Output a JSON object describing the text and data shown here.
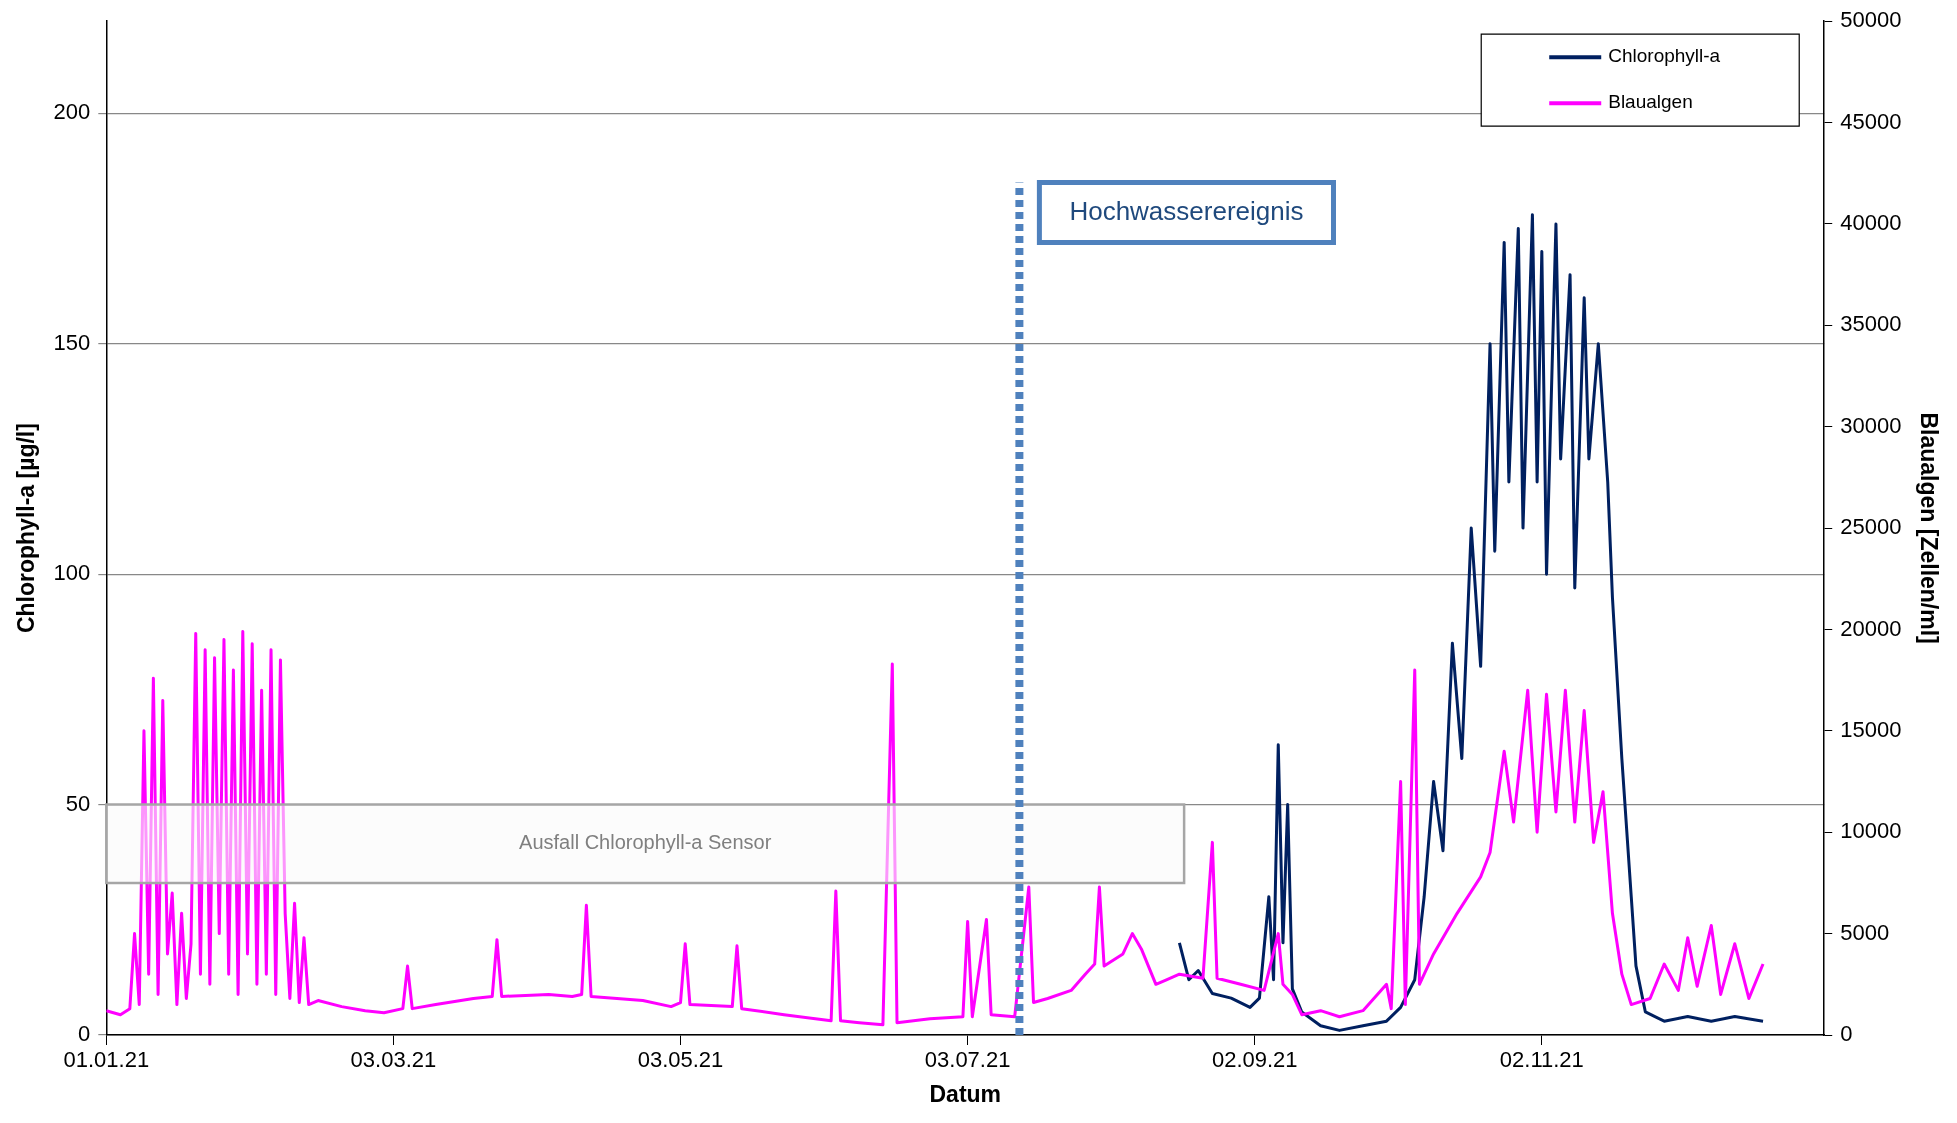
{
  "chart_data": {
    "type": "line",
    "xlabel": "Datum",
    "ylabel": "Chlorophyll-a [µg/l]",
    "y2label": "Blaualgen [Zellen/ml]",
    "xlim": [
      "2021-01-01",
      "2022-01-01"
    ],
    "xticks": [
      {
        "value": "2021-01-01",
        "label": "01.01.21"
      },
      {
        "value": "2021-03-03",
        "label": "03.03.21"
      },
      {
        "value": "2021-05-03",
        "label": "03.05.21"
      },
      {
        "value": "2021-07-03",
        "label": "03.07.21"
      },
      {
        "value": "2021-09-02",
        "label": "02.09.21"
      },
      {
        "value": "2021-11-02",
        "label": "02.11.21"
      }
    ],
    "ylim": [
      0,
      220
    ],
    "yticks": [
      0,
      50,
      100,
      150,
      200
    ],
    "y2lim": [
      0,
      50000
    ],
    "y2ticks": [
      0,
      5000,
      10000,
      15000,
      20000,
      25000,
      30000,
      35000,
      40000,
      45000,
      50000
    ],
    "grid": "y",
    "legend": "top right",
    "marker": "none",
    "line_style": "solid",
    "series": [
      {
        "name": "Chlorophyll-a",
        "color": "#002060",
        "x": [
          "2021-08-17",
          "2021-08-19",
          "2021-08-21",
          "2021-08-24",
          "2021-08-28",
          "2021-09-01",
          "2021-09-03",
          "2021-09-05",
          "2021-09-06",
          "2021-09-07",
          "2021-09-08",
          "2021-09-09",
          "2021-09-10",
          "2021-09-12",
          "2021-09-16",
          "2021-09-20",
          "2021-09-25",
          "2021-09-30",
          "2021-10-03",
          "2021-10-06",
          "2021-10-08",
          "2021-10-10",
          "2021-10-12",
          "2021-10-14",
          "2021-10-16",
          "2021-10-18",
          "2021-10-20",
          "2021-10-22",
          "2021-10-23",
          "2021-10-25",
          "2021-10-26",
          "2021-10-28",
          "2021-10-29",
          "2021-10-31",
          "2021-11-01",
          "2021-11-02",
          "2021-11-03",
          "2021-11-05",
          "2021-11-06",
          "2021-11-08",
          "2021-11-09",
          "2021-11-11",
          "2021-11-12",
          "2021-11-14",
          "2021-11-16",
          "2021-11-17",
          "2021-11-19",
          "2021-11-21",
          "2021-11-22",
          "2021-11-24",
          "2021-11-28",
          "2021-12-03",
          "2021-12-08",
          "2021-12-13",
          "2021-12-19"
        ],
        "values": [
          20,
          12,
          14,
          9,
          8,
          6,
          8,
          30,
          12,
          63,
          20,
          50,
          10,
          5,
          2,
          1,
          2,
          3,
          6,
          12,
          30,
          55,
          40,
          85,
          60,
          110,
          80,
          150,
          105,
          172,
          120,
          175,
          110,
          178,
          120,
          170,
          100,
          176,
          125,
          165,
          97,
          160,
          125,
          150,
          120,
          95,
          60,
          30,
          15,
          5,
          3,
          4,
          3,
          4,
          3
        ]
      },
      {
        "name": "Blaualgen",
        "color": "#ff00ff",
        "axis": "y2",
        "x": [
          "2021-01-01",
          "2021-01-04",
          "2021-01-06",
          "2021-01-07",
          "2021-01-08",
          "2021-01-09",
          "2021-01-10",
          "2021-01-11",
          "2021-01-12",
          "2021-01-13",
          "2021-01-14",
          "2021-01-15",
          "2021-01-16",
          "2021-01-17",
          "2021-01-18",
          "2021-01-19",
          "2021-01-20",
          "2021-01-21",
          "2021-01-22",
          "2021-01-23",
          "2021-01-24",
          "2021-01-25",
          "2021-01-26",
          "2021-01-27",
          "2021-01-28",
          "2021-01-29",
          "2021-01-30",
          "2021-01-31",
          "2021-02-01",
          "2021-02-02",
          "2021-02-03",
          "2021-02-04",
          "2021-02-05",
          "2021-02-06",
          "2021-02-07",
          "2021-02-08",
          "2021-02-09",
          "2021-02-10",
          "2021-02-11",
          "2021-02-12",
          "2021-02-13",
          "2021-02-15",
          "2021-02-20",
          "2021-02-25",
          "2021-03-01",
          "2021-03-05",
          "2021-03-06",
          "2021-03-07",
          "2021-03-12",
          "2021-03-20",
          "2021-03-24",
          "2021-03-25",
          "2021-03-26",
          "2021-04-05",
          "2021-04-10",
          "2021-04-12",
          "2021-04-13",
          "2021-04-14",
          "2021-04-25",
          "2021-05-01",
          "2021-05-03",
          "2021-05-04",
          "2021-05-05",
          "2021-05-14",
          "2021-05-15",
          "2021-05-16",
          "2021-05-25",
          "2021-06-04",
          "2021-06-05",
          "2021-06-06",
          "2021-06-10",
          "2021-06-15",
          "2021-06-17",
          "2021-06-18",
          "2021-06-25",
          "2021-07-02",
          "2021-07-03",
          "2021-07-04",
          "2021-07-07",
          "2021-07-08",
          "2021-07-13",
          "2021-07-16",
          "2021-07-17",
          "2021-07-20",
          "2021-07-25",
          "2021-07-28",
          "2021-07-30",
          "2021-07-31",
          "2021-08-01",
          "2021-08-05",
          "2021-08-07",
          "2021-08-09",
          "2021-08-12",
          "2021-08-14",
          "2021-08-17",
          "2021-08-22",
          "2021-08-24",
          "2021-08-25",
          "2021-08-30",
          "2021-09-04",
          "2021-09-07",
          "2021-09-08",
          "2021-09-10",
          "2021-09-12",
          "2021-09-16",
          "2021-09-20",
          "2021-09-25",
          "2021-09-30",
          "2021-10-01",
          "2021-10-03",
          "2021-10-04",
          "2021-10-06",
          "2021-10-07",
          "2021-10-10",
          "2021-10-15",
          "2021-10-20",
          "2021-10-22",
          "2021-10-25",
          "2021-10-27",
          "2021-10-30",
          "2021-11-01",
          "2021-11-03",
          "2021-11-05",
          "2021-11-07",
          "2021-11-09",
          "2021-11-11",
          "2021-11-13",
          "2021-11-15",
          "2021-11-17",
          "2021-11-19",
          "2021-11-21",
          "2021-11-25",
          "2021-11-28",
          "2021-12-01",
          "2021-12-03",
          "2021-12-05",
          "2021-12-08",
          "2021-12-10",
          "2021-12-13",
          "2021-12-16",
          "2021-12-19"
        ],
        "values": [
          1200,
          1000,
          1300,
          5000,
          1500,
          15000,
          3000,
          17600,
          2000,
          16500,
          4000,
          7000,
          1500,
          6000,
          1800,
          4500,
          19800,
          3000,
          19000,
          2500,
          18600,
          5000,
          19500,
          3000,
          18000,
          2000,
          19900,
          4000,
          19300,
          2500,
          17000,
          3000,
          19000,
          2000,
          18500,
          6000,
          1800,
          6500,
          1600,
          4800,
          1500,
          1700,
          1400,
          1200,
          1100,
          1300,
          3400,
          1300,
          1500,
          1800,
          1900,
          4700,
          1900,
          2000,
          1900,
          2000,
          6400,
          1900,
          1700,
          1400,
          1600,
          4500,
          1500,
          1400,
          4400,
          1300,
          1000,
          700,
          7100,
          700,
          600,
          500,
          18300,
          600,
          800,
          900,
          5600,
          900,
          5700,
          1000,
          900,
          7300,
          1600,
          1800,
          2200,
          3000,
          3500,
          7300,
          3400,
          4000,
          5000,
          4200,
          2500,
          2700,
          3000,
          2800,
          9500,
          2800,
          2500,
          2200,
          5000,
          2500,
          2000,
          1000,
          1200,
          900,
          1200,
          2500,
          1300,
          12500,
          1500,
          18000,
          2500,
          4000,
          6000,
          7800,
          9000,
          14000,
          10500,
          17000,
          10000,
          16800,
          11000,
          17000,
          10500,
          16000,
          9500,
          12000,
          6000,
          3000,
          1500,
          1800,
          3500,
          2200,
          4800,
          2400,
          5400,
          2000,
          4500,
          1800,
          3500
        ]
      }
    ],
    "ref_lines": [
      {
        "axis": "x",
        "value": "2021-07-14",
        "label": "Hochwasserereignis",
        "color": "#4f81bd",
        "line_style": "dotted"
      }
    ],
    "bands": [
      {
        "axis": "x",
        "from": "2021-01-01",
        "to": "2021-08-18",
        "label": "Ausfall Chlorophyll-a Sensor",
        "color": "#fafafa"
      }
    ]
  }
}
